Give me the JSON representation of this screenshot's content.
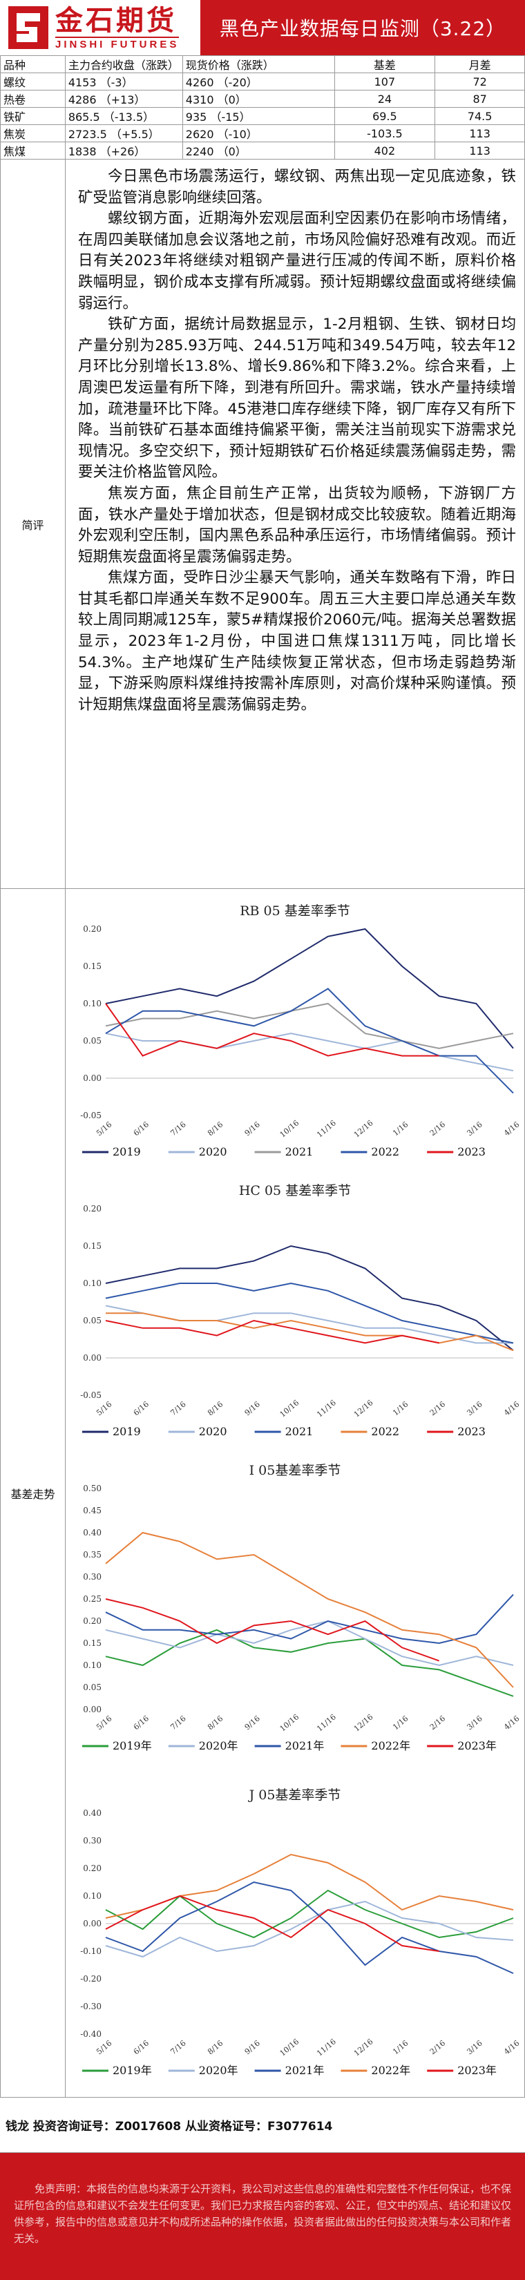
{
  "header": {
    "logo_cn": "金石期货",
    "logo_en": "JINSHI FUTURES",
    "title": "黑色产业数据每日监测（3.22）",
    "brand_color": "#c8161d"
  },
  "table": {
    "headers": [
      "品种",
      "主力合约收盘（涨跌）",
      "现货价格（涨跌）",
      "基差",
      "月差"
    ],
    "rows": [
      {
        "name": "螺纹",
        "close": "4153",
        "close_chg": "（-3）",
        "spot": "4260",
        "spot_chg": "（-20）",
        "basis": "107",
        "spread": "72"
      },
      {
        "name": "热卷",
        "close": "4286",
        "close_chg": "（+13）",
        "spot": "4310",
        "spot_chg": "（0）",
        "basis": "24",
        "spread": "87"
      },
      {
        "name": "铁矿",
        "close": "865.5",
        "close_chg": "（-13.5）",
        "spot": "935",
        "spot_chg": "（-15）",
        "basis": "69.5",
        "spread": "74.5"
      },
      {
        "name": "焦炭",
        "close": "2723.5",
        "close_chg": "（+5.5）",
        "spot": "2620",
        "spot_chg": "（-10）",
        "basis": "-103.5",
        "spread": "113"
      },
      {
        "name": "焦煤",
        "close": "1838",
        "close_chg": "（+26）",
        "spot": "2240",
        "spot_chg": "（0）",
        "basis": "402",
        "spread": "113"
      }
    ]
  },
  "summary": {
    "label": "简评",
    "paragraphs": [
      "今日黑色市场震荡运行，螺纹钢、两焦出现一定见底迹象，铁矿受监管消息影响继续回落。",
      "螺纹钢方面，近期海外宏观层面利空因素仍在影响市场情绪，在周四美联储加息会议落地之前，市场风险偏好恐难有改观。而近日有关2023年将继续对粗钢产量进行压减的传闻不断，原料价格跌幅明显，钢价成本支撑有所减弱。预计短期螺纹盘面或将继续偏弱运行。",
      "铁矿方面，据统计局数据显示，1-2月粗钢、生铁、钢材日均产量分别为285.93万吨、244.51万吨和349.54万吨，较去年12月环比分别增长13.8%、增长9.86%和下降3.2%。综合来看，上周澳巴发运量有所下降，到港有所回升。需求端，铁水产量持续增加，疏港量环比下降。45港港口库存继续下降，钢厂库存又有所下降。当前铁矿石基本面维持偏紧平衡，需关注当前现实下游需求兑现情况。多空交织下，预计短期铁矿石价格延续震荡偏弱走势，需要关注价格监管风险。",
      "焦炭方面，焦企目前生产正常，出货较为顺畅，下游钢厂方面，铁水产量处于增加状态，但是钢材成交比较疲软。随着近期海外宏观利空压制，国内黑色系品种承压运行，市场情绪偏弱。预计短期焦炭盘面将呈震荡偏弱走势。",
      "焦煤方面，受昨日沙尘暴天气影响，通关车数略有下滑，昨日甘其毛都口岸通关车数不足900车。周五三大主要口岸总通关车数较上周同期减125车，蒙5#精煤报价2060元/吨。据海关总署数据显示，2023年1-2月份，中国进口焦煤1311万吨，同比增长54.3%。主产地煤矿生产陆续恢复正常状态，但市场走弱趋势渐显，下游采购原料煤维持按需补库原则，对高价煤种采购谨慎。预计短期焦煤盘面将呈震荡偏弱走势。"
    ]
  },
  "charts_label": "基差走势",
  "chart_data": [
    {
      "type": "line",
      "title": "RB 05 基差率季节",
      "x": [
        "5/16",
        "6/16",
        "7/16",
        "8/16",
        "9/16",
        "10/16",
        "11/16",
        "12/16",
        "1/16",
        "2/16",
        "3/16",
        "4/16"
      ],
      "ylim": [
        -0.05,
        0.2
      ],
      "yticks": [
        "-0.05",
        "0.00",
        "0.05",
        "0.10",
        "0.15",
        "0.20"
      ],
      "series": [
        {
          "name": "2019",
          "color": "#1f2a6b",
          "values": [
            0.1,
            0.11,
            0.12,
            0.11,
            0.13,
            0.16,
            0.19,
            0.2,
            0.15,
            0.11,
            0.1,
            0.04
          ]
        },
        {
          "name": "2020",
          "color": "#9fb6d9",
          "values": [
            0.06,
            0.05,
            0.05,
            0.04,
            0.05,
            0.06,
            0.05,
            0.04,
            0.05,
            0.03,
            0.02,
            0.01
          ]
        },
        {
          "name": "2021",
          "color": "#9a9a9a",
          "values": [
            0.07,
            0.08,
            0.08,
            0.09,
            0.08,
            0.09,
            0.1,
            0.06,
            0.05,
            0.04,
            0.05,
            0.06
          ]
        },
        {
          "name": "2022",
          "color": "#2e56a8",
          "values": [
            0.06,
            0.09,
            0.09,
            0.08,
            0.07,
            0.09,
            0.12,
            0.07,
            0.05,
            0.03,
            0.03,
            -0.02
          ]
        },
        {
          "name": "2023",
          "color": "#e0161d",
          "values": [
            0.1,
            0.03,
            0.05,
            0.04,
            0.06,
            0.05,
            0.03,
            0.04,
            0.03,
            0.03,
            null,
            null
          ]
        }
      ]
    },
    {
      "type": "line",
      "title": "HC 05 基差率季节",
      "x": [
        "5/16",
        "6/16",
        "7/16",
        "8/16",
        "9/16",
        "10/16",
        "11/16",
        "12/16",
        "1/16",
        "2/16",
        "3/16",
        "4/16"
      ],
      "ylim": [
        -0.05,
        0.2
      ],
      "yticks": [
        "-0.05",
        "0.00",
        "0.05",
        "0.10",
        "0.15",
        "0.20"
      ],
      "series": [
        {
          "name": "2019",
          "color": "#1f2a6b",
          "values": [
            0.1,
            0.11,
            0.12,
            0.12,
            0.13,
            0.15,
            0.14,
            0.12,
            0.08,
            0.07,
            0.05,
            0.01
          ]
        },
        {
          "name": "2020",
          "color": "#9fb6d9",
          "values": [
            0.07,
            0.06,
            0.05,
            0.05,
            0.06,
            0.06,
            0.05,
            0.04,
            0.04,
            0.03,
            0.02,
            0.02
          ]
        },
        {
          "name": "2021",
          "color": "#2e56a8",
          "values": [
            0.08,
            0.09,
            0.1,
            0.1,
            0.09,
            0.1,
            0.09,
            0.07,
            0.05,
            0.04,
            0.03,
            0.02
          ]
        },
        {
          "name": "2022",
          "color": "#e6803a",
          "values": [
            0.06,
            0.06,
            0.05,
            0.05,
            0.04,
            0.05,
            0.04,
            0.03,
            0.03,
            0.02,
            0.03,
            0.01
          ]
        },
        {
          "name": "2023",
          "color": "#e0161d",
          "values": [
            0.05,
            0.04,
            0.04,
            0.03,
            0.05,
            0.04,
            0.03,
            0.02,
            0.03,
            0.02,
            null,
            null
          ]
        }
      ]
    },
    {
      "type": "line",
      "title": "I 05基差率季节",
      "x": [
        "5/16",
        "6/16",
        "7/16",
        "8/16",
        "9/16",
        "10/16",
        "11/16",
        "12/16",
        "1/16",
        "2/16",
        "3/16",
        "4/16"
      ],
      "ylim": [
        0.0,
        0.5
      ],
      "yticks": [
        "0.00",
        "0.05",
        "0.10",
        "0.15",
        "0.20",
        "0.25",
        "0.30",
        "0.35",
        "0.40",
        "0.45",
        "0.50"
      ],
      "series": [
        {
          "name": "2019年",
          "color": "#2a9d3a",
          "values": [
            0.12,
            0.1,
            0.15,
            0.18,
            0.14,
            0.13,
            0.15,
            0.16,
            0.1,
            0.09,
            0.06,
            0.03
          ]
        },
        {
          "name": "2020年",
          "color": "#9fb6d9",
          "values": [
            0.18,
            0.16,
            0.14,
            0.17,
            0.15,
            0.18,
            0.2,
            0.16,
            0.12,
            0.1,
            0.12,
            0.1
          ]
        },
        {
          "name": "2021年",
          "color": "#2e56a8",
          "values": [
            0.22,
            0.18,
            0.18,
            0.17,
            0.18,
            0.16,
            0.2,
            0.18,
            0.16,
            0.15,
            0.17,
            0.26
          ]
        },
        {
          "name": "2022年",
          "color": "#e6803a",
          "values": [
            0.33,
            0.4,
            0.38,
            0.34,
            0.35,
            0.3,
            0.25,
            0.22,
            0.18,
            0.17,
            0.14,
            0.05
          ]
        },
        {
          "name": "2023年",
          "color": "#e0161d",
          "values": [
            0.25,
            0.23,
            0.2,
            0.15,
            0.19,
            0.2,
            0.17,
            0.2,
            0.14,
            0.11,
            null,
            null
          ]
        }
      ]
    },
    {
      "type": "line",
      "title": "J 05基差率季节",
      "x": [
        "5/16",
        "6/16",
        "7/16",
        "8/16",
        "9/16",
        "10/16",
        "11/16",
        "12/16",
        "1/16",
        "2/16",
        "3/16",
        "4/16"
      ],
      "ylim": [
        -0.4,
        0.4
      ],
      "yticks": [
        "-0.40",
        "-0.30",
        "-0.20",
        "-0.10",
        "0.00",
        "0.10",
        "0.20",
        "0.30",
        "0.40"
      ],
      "series": [
        {
          "name": "2019年",
          "color": "#2a9d3a",
          "values": [
            0.05,
            -0.02,
            0.1,
            0.0,
            -0.05,
            0.02,
            0.12,
            0.05,
            0.0,
            -0.05,
            -0.03,
            0.02
          ]
        },
        {
          "name": "2020年",
          "color": "#9fb6d9",
          "values": [
            -0.08,
            -0.12,
            -0.05,
            -0.1,
            -0.08,
            -0.02,
            0.05,
            0.08,
            0.02,
            0.0,
            -0.05,
            -0.06
          ]
        },
        {
          "name": "2021年",
          "color": "#2e56a8",
          "values": [
            -0.05,
            -0.1,
            0.02,
            0.08,
            0.15,
            0.12,
            0.0,
            -0.15,
            -0.05,
            -0.1,
            -0.12,
            -0.18
          ]
        },
        {
          "name": "2022年",
          "color": "#e6803a",
          "values": [
            0.02,
            0.05,
            0.1,
            0.12,
            0.18,
            0.25,
            0.22,
            0.15,
            0.05,
            0.1,
            0.08,
            0.05
          ]
        },
        {
          "name": "2023年",
          "color": "#e0161d",
          "values": [
            -0.02,
            0.05,
            0.1,
            0.05,
            0.02,
            -0.05,
            0.05,
            0.0,
            -0.08,
            -0.1,
            null,
            null
          ]
        }
      ]
    }
  ],
  "sign": "钱龙 投资咨询证号：Z0017608 从业资格证号：F3077614",
  "disclaimer": "免责声明：本报告的信息均来源于公开资料，我公司对这些信息的准确性和完整性不作任何保证，也不保证所包含的信息和建议不会发生任何变更。我们已力求报告内容的客观、公正，但文中的观点、结论和建议仅供参考，报告中的信息或意见并不构成所述品种的操作依据，投资者据此做出的任何投资决策与本公司和作者无关。"
}
